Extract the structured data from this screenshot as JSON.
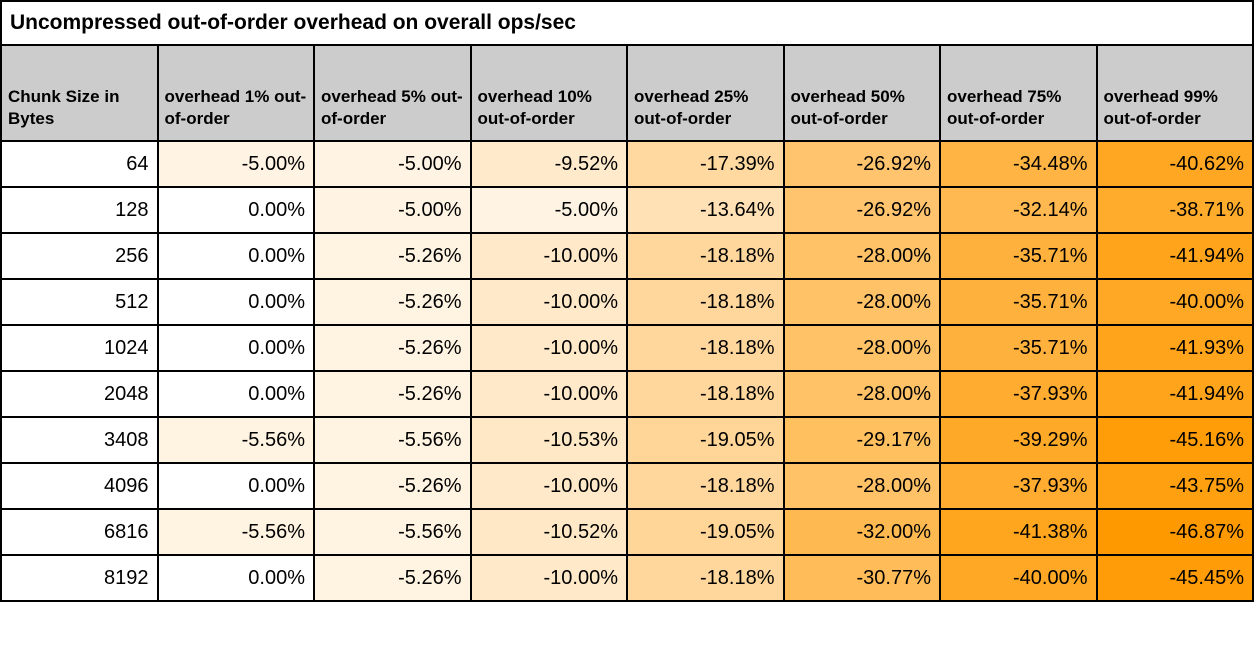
{
  "title": "Uncompressed out-of-order overhead on overall ops/sec",
  "heatmap": {
    "zero_color": "#ffffff",
    "max_color": "#ff9900",
    "max_abs_value": 46.87,
    "header_bg": "#cccccc",
    "grid_color": "#000000"
  },
  "chart_data": {
    "type": "table",
    "title": "Uncompressed out-of-order overhead on overall ops/sec",
    "columns": [
      "Chunk Size in Bytes",
      "overhead 1% out-of-order",
      "overhead 5% out-of-order",
      "overhead 10% out-of-order",
      "overhead 25% out-of-order",
      "overhead 50% out-of-order",
      "overhead 75% out-of-order",
      "overhead 99% out-of-order"
    ],
    "rows": [
      {
        "chunk_size": "64",
        "values": [
          -5.0,
          -5.0,
          -9.52,
          -17.39,
          -26.92,
          -34.48,
          -40.62
        ],
        "display": [
          "-5.00%",
          "-5.00%",
          "-9.52%",
          "-17.39%",
          "-26.92%",
          "-34.48%",
          "-40.62%"
        ]
      },
      {
        "chunk_size": "128",
        "values": [
          0.0,
          -5.0,
          -5.0,
          -13.64,
          -26.92,
          -32.14,
          -38.71
        ],
        "display": [
          "0.00%",
          "-5.00%",
          "-5.00%",
          "-13.64%",
          "-26.92%",
          "-32.14%",
          "-38.71%"
        ]
      },
      {
        "chunk_size": "256",
        "values": [
          0.0,
          -5.26,
          -10.0,
          -18.18,
          -28.0,
          -35.71,
          -41.94
        ],
        "display": [
          "0.00%",
          "-5.26%",
          "-10.00%",
          "-18.18%",
          "-28.00%",
          "-35.71%",
          "-41.94%"
        ]
      },
      {
        "chunk_size": "512",
        "values": [
          0.0,
          -5.26,
          -10.0,
          -18.18,
          -28.0,
          -35.71,
          -40.0
        ],
        "display": [
          "0.00%",
          "-5.26%",
          "-10.00%",
          "-18.18%",
          "-28.00%",
          "-35.71%",
          "-40.00%"
        ]
      },
      {
        "chunk_size": "1024",
        "values": [
          0.0,
          -5.26,
          -10.0,
          -18.18,
          -28.0,
          -35.71,
          -41.93
        ],
        "display": [
          "0.00%",
          "-5.26%",
          "-10.00%",
          "-18.18%",
          "-28.00%",
          "-35.71%",
          "-41.93%"
        ]
      },
      {
        "chunk_size": "2048",
        "values": [
          0.0,
          -5.26,
          -10.0,
          -18.18,
          -28.0,
          -37.93,
          -41.94
        ],
        "display": [
          "0.00%",
          "-5.26%",
          "-10.00%",
          "-18.18%",
          "-28.00%",
          "-37.93%",
          "-41.94%"
        ]
      },
      {
        "chunk_size": "3408",
        "values": [
          -5.56,
          -5.56,
          -10.53,
          -19.05,
          -29.17,
          -39.29,
          -45.16
        ],
        "display": [
          "-5.56%",
          "-5.56%",
          "-10.53%",
          "-19.05%",
          "-29.17%",
          "-39.29%",
          "-45.16%"
        ]
      },
      {
        "chunk_size": "4096",
        "values": [
          0.0,
          -5.26,
          -10.0,
          -18.18,
          -28.0,
          -37.93,
          -43.75
        ],
        "display": [
          "0.00%",
          "-5.26%",
          "-10.00%",
          "-18.18%",
          "-28.00%",
          "-37.93%",
          "-43.75%"
        ]
      },
      {
        "chunk_size": "6816",
        "values": [
          -5.56,
          -5.56,
          -10.52,
          -19.05,
          -32.0,
          -41.38,
          -46.87
        ],
        "display": [
          "-5.56%",
          "-5.56%",
          "-10.52%",
          "-19.05%",
          "-32.00%",
          "-41.38%",
          "-46.87%"
        ]
      },
      {
        "chunk_size": "8192",
        "values": [
          0.0,
          -5.26,
          -10.0,
          -18.18,
          -30.77,
          -40.0,
          -45.45
        ],
        "display": [
          "0.00%",
          "-5.26%",
          "-10.00%",
          "-18.18%",
          "-30.77%",
          "-40.00%",
          "-45.45%"
        ]
      }
    ]
  }
}
